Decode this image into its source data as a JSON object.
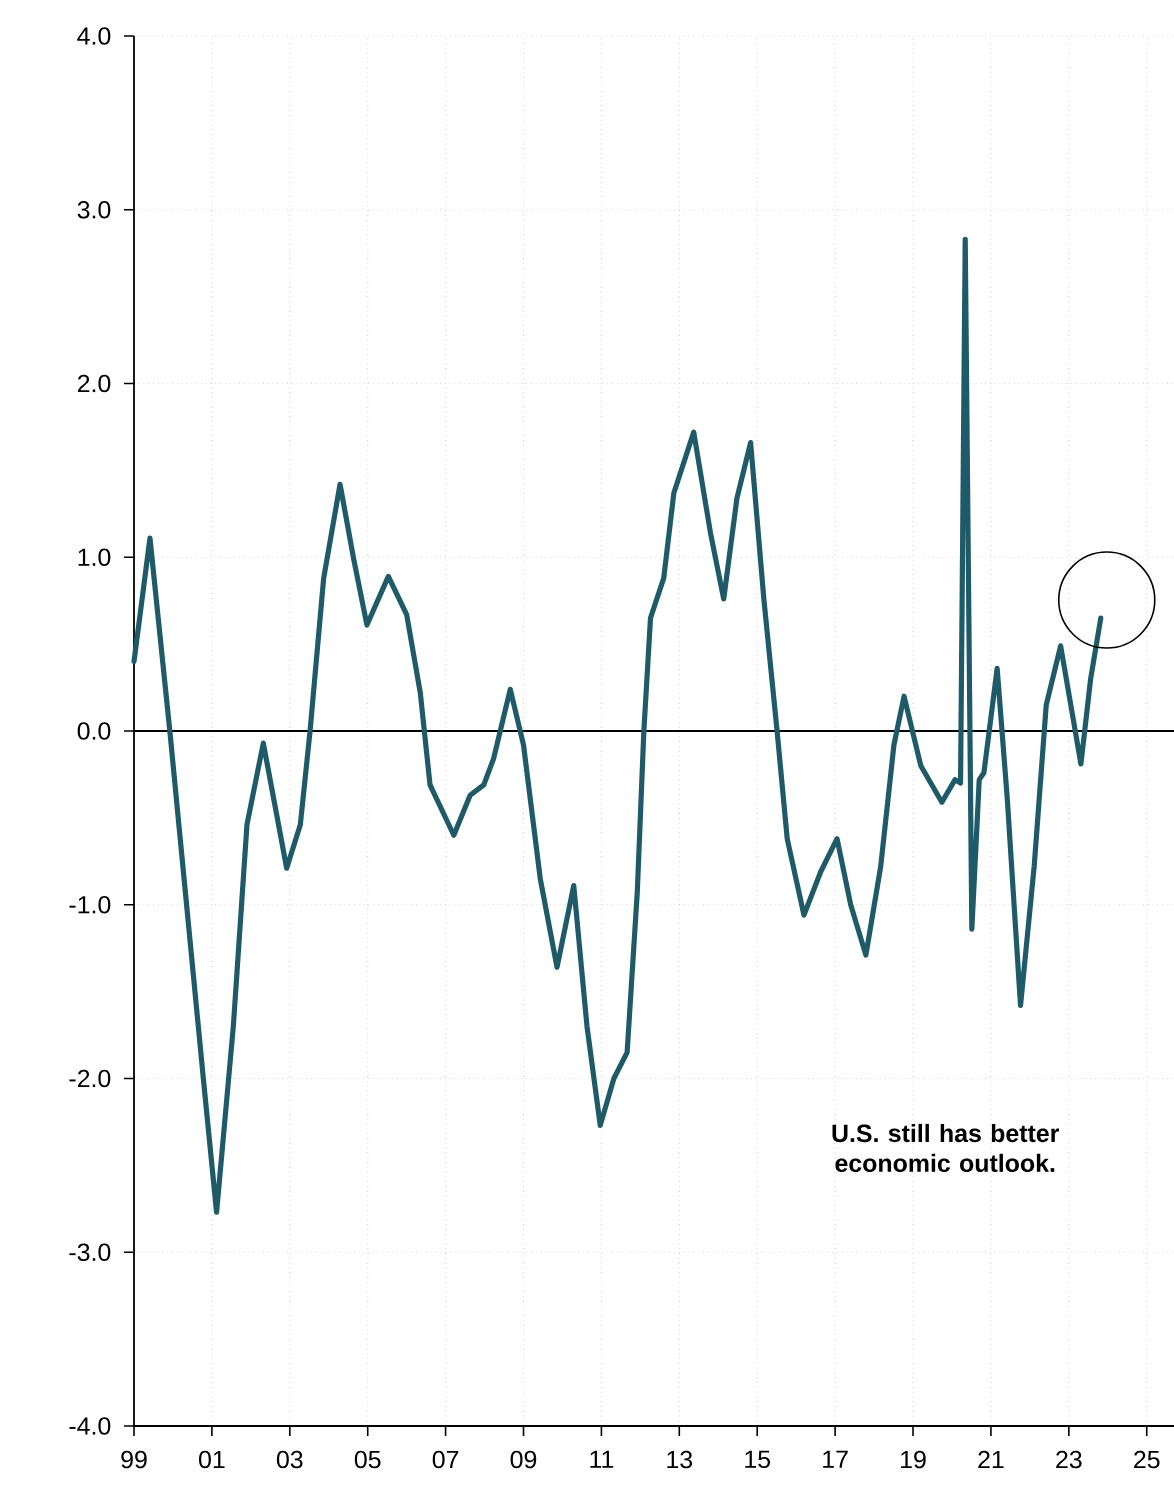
{
  "chart_data": {
    "type": "line",
    "x": [
      1999.0,
      1999.41,
      1999.92,
      2000.35,
      2000.78,
      2001.12,
      2001.55,
      2001.9,
      2002.32,
      2002.92,
      2003.27,
      2003.52,
      2003.87,
      2004.29,
      2004.64,
      2004.98,
      2005.53,
      2006.0,
      2006.35,
      2006.6,
      2007.21,
      2007.63,
      2007.98,
      2008.23,
      2008.66,
      2009.0,
      2009.43,
      2009.86,
      2010.29,
      2010.63,
      2010.97,
      2011.32,
      2011.66,
      2011.92,
      2012.09,
      2012.26,
      2012.6,
      2012.86,
      2013.37,
      2013.8,
      2014.14,
      2014.48,
      2014.83,
      2015.17,
      2015.51,
      2015.77,
      2016.2,
      2016.63,
      2017.05,
      2017.4,
      2017.79,
      2018.17,
      2018.51,
      2018.77,
      2019.2,
      2019.74,
      2020.08,
      2020.22,
      2020.34,
      2020.51,
      2020.7,
      2020.82,
      2021.16,
      2021.42,
      2021.76,
      2022.11,
      2022.42,
      2022.79,
      2023.05,
      2023.31,
      2023.56,
      2023.82
    ],
    "series": [
      {
        "color": "#1f5a69",
        "values": [
          0.4,
          1.11,
          0.0,
          -1.0,
          -2.0,
          -2.77,
          -1.7,
          -0.54,
          -0.07,
          -0.79,
          -0.54,
          0.0,
          0.88,
          1.42,
          0.99,
          0.61,
          0.89,
          0.67,
          0.22,
          -0.31,
          -0.6,
          -0.37,
          -0.31,
          -0.16,
          0.24,
          -0.08,
          -0.85,
          -1.36,
          -0.89,
          -1.7,
          -2.27,
          -2.0,
          -1.85,
          -0.93,
          0.0,
          0.65,
          0.88,
          1.37,
          1.72,
          1.14,
          0.76,
          1.34,
          1.66,
          0.76,
          0.0,
          -0.62,
          -1.06,
          -0.81,
          -0.62,
          -1.0,
          -1.29,
          -0.78,
          -0.08,
          0.2,
          -0.2,
          -0.41,
          -0.28,
          -0.3,
          2.83,
          -1.14,
          -0.28,
          -0.24,
          0.36,
          -0.39,
          -1.58,
          -0.78,
          0.15,
          0.49,
          0.15,
          -0.19,
          0.3,
          0.65
        ]
      }
    ],
    "xlim": [
      1999,
      2025.7
    ],
    "xticks": [
      {
        "value": 1999,
        "label": "99"
      },
      {
        "value": 2001,
        "label": "01"
      },
      {
        "value": 2003,
        "label": "03"
      },
      {
        "value": 2005,
        "label": "05"
      },
      {
        "value": 2007,
        "label": "07"
      },
      {
        "value": 2009,
        "label": "09"
      },
      {
        "value": 2011,
        "label": "11"
      },
      {
        "value": 2013,
        "label": "13"
      },
      {
        "value": 2015,
        "label": "15"
      },
      {
        "value": 2017,
        "label": "17"
      },
      {
        "value": 2019,
        "label": "19"
      },
      {
        "value": 2021,
        "label": "21"
      },
      {
        "value": 2023,
        "label": "23"
      },
      {
        "value": 2025,
        "label": "25"
      }
    ],
    "ylim": [
      -4,
      4
    ],
    "yticks": [
      {
        "value": -4,
        "label": "-4.0"
      },
      {
        "value": -3,
        "label": "-3.0"
      },
      {
        "value": -2,
        "label": "-2.0"
      },
      {
        "value": -1,
        "label": "-1.0"
      },
      {
        "value": 0,
        "label": "0.0"
      },
      {
        "value": 1,
        "label": "1.0"
      },
      {
        "value": 2,
        "label": "2.0"
      },
      {
        "value": 3,
        "label": "3.0"
      },
      {
        "value": 4,
        "label": "4.0"
      }
    ],
    "grid": true,
    "line_style": "solid",
    "marker": "none",
    "ref_lines": [
      {
        "axis": "y",
        "value": 0,
        "color": "#000000"
      }
    ],
    "annotations": [
      "U.S. still has better economic outlook."
    ]
  }
}
